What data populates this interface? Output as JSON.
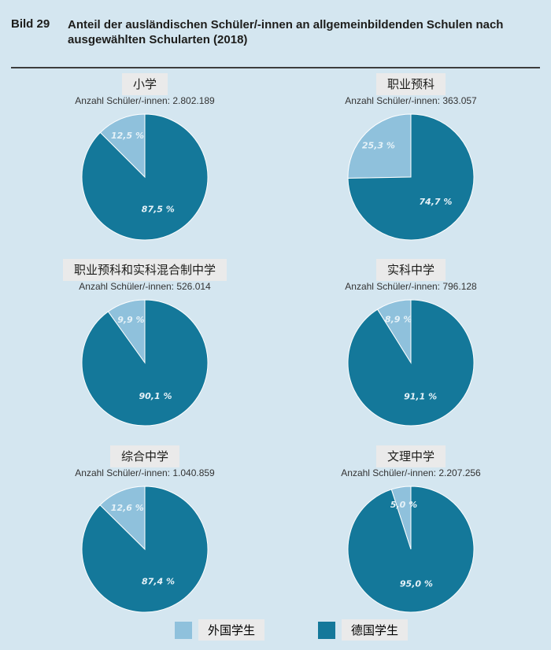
{
  "figure": {
    "number": "Bild 29",
    "title": "Anteil der ausländischen Schüler/-innen an allgemeinbildenden Schulen nach ausgewählten Schularten (2018)"
  },
  "colors": {
    "foreign": "#8fc1dc",
    "german": "#14789a"
  },
  "legend": {
    "foreign": "外国学生",
    "german": "德国学生"
  },
  "chart_data": [
    {
      "type": "pie",
      "title": "小学",
      "subtitle": "Anzahl Schüler/-innen: 2.802.189",
      "slices": [
        {
          "name": "外国学生",
          "value": 12.5,
          "label": "12,5 %"
        },
        {
          "name": "德国学生",
          "value": 87.5,
          "label": "87,5 %"
        }
      ]
    },
    {
      "type": "pie",
      "title": "职业预科",
      "subtitle": "Anzahl Schüler/-innen: 363.057",
      "slices": [
        {
          "name": "外国学生",
          "value": 25.3,
          "label": "25,3 %"
        },
        {
          "name": "德国学生",
          "value": 74.7,
          "label": "74,7 %"
        }
      ]
    },
    {
      "type": "pie",
      "title": "职业预科和实科混合制中学",
      "subtitle": "Anzahl Schüler/-innen: 526.014",
      "slices": [
        {
          "name": "外国学生",
          "value": 9.9,
          "label": "9,9 %"
        },
        {
          "name": "德国学生",
          "value": 90.1,
          "label": "90,1 %"
        }
      ]
    },
    {
      "type": "pie",
      "title": "实科中学",
      "subtitle": "Anzahl Schüler/-innen: 796.128",
      "slices": [
        {
          "name": "外国学生",
          "value": 8.9,
          "label": "8,9 %"
        },
        {
          "name": "德国学生",
          "value": 91.1,
          "label": "91,1 %"
        }
      ]
    },
    {
      "type": "pie",
      "title": "综合中学",
      "subtitle": "Anzahl Schüler/-innen: 1.040.859",
      "slices": [
        {
          "name": "外国学生",
          "value": 12.6,
          "label": "12,6 %"
        },
        {
          "name": "德国学生",
          "value": 87.4,
          "label": "87,4 %"
        }
      ]
    },
    {
      "type": "pie",
      "title": "文理中学",
      "subtitle": "Anzahl Schüler/-innen: 2.207.256",
      "slices": [
        {
          "name": "外国学生",
          "value": 5.0,
          "label": "5,0 %"
        },
        {
          "name": "德国学生",
          "value": 95.0,
          "label": "95,0 %"
        }
      ]
    }
  ]
}
